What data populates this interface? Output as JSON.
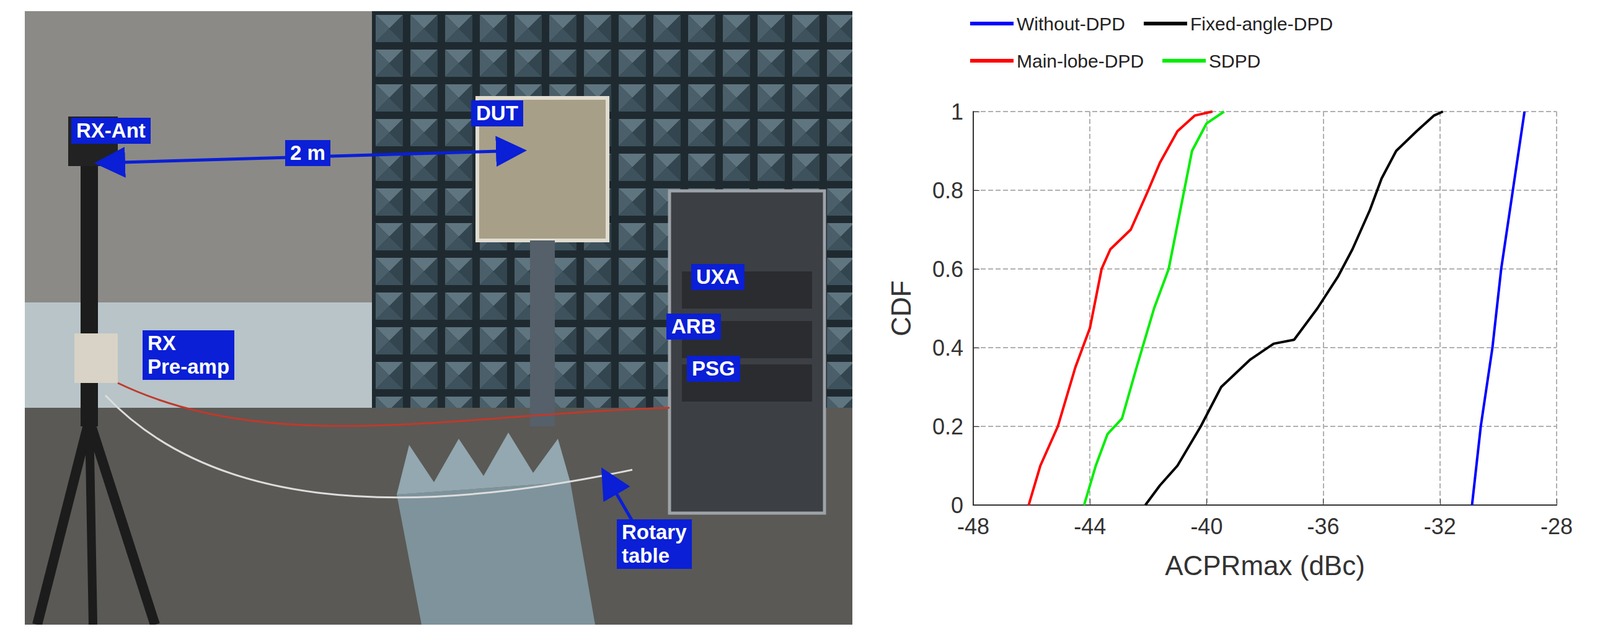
{
  "photo": {
    "labels": {
      "rx_ant": "RX-Ant",
      "distance": "2 m",
      "dut": "DUT",
      "uxa": "UXA",
      "arb": "ARB",
      "psg": "PSG",
      "preamp": "RX Pre-amp",
      "rotary": "Rotary table"
    }
  },
  "chart_data": {
    "type": "line",
    "x_label": "ACPRmax (dBc)",
    "y_label": "CDF",
    "xlim": [
      -48,
      -28
    ],
    "xticks": [
      -48,
      -44,
      -40,
      -36,
      -32,
      -28
    ],
    "ylim": [
      0,
      1
    ],
    "yticks": [
      0,
      0.2,
      0.4,
      0.6,
      0.8,
      1
    ],
    "grid": true,
    "legend": "top",
    "series": [
      {
        "name": "Without-DPD",
        "color": "#0000ff",
        "x": [
          -30.9,
          -30.6,
          -30.2,
          -29.9,
          -29.5,
          -29.1
        ],
        "values": [
          0,
          0.2,
          0.4,
          0.6,
          0.8,
          1
        ]
      },
      {
        "name": "Fixed-angle-DPD",
        "color": "#000000",
        "x": [
          -42.1,
          -41.6,
          -41,
          -40.2,
          -39.5,
          -38.5,
          -37.7,
          -37,
          -36.2,
          -35.5,
          -35,
          -34.4,
          -34,
          -33.5,
          -32.8,
          -32.2,
          -31.9
        ],
        "values": [
          0,
          0.05,
          0.1,
          0.2,
          0.3,
          0.37,
          0.41,
          0.42,
          0.5,
          0.58,
          0.65,
          0.75,
          0.83,
          0.9,
          0.95,
          0.99,
          1
        ]
      },
      {
        "name": "Main-lobe-DPD",
        "color": "#ff0000",
        "x": [
          -46.1,
          -45.7,
          -45.1,
          -44.5,
          -44,
          -43.6,
          -43.3,
          -42.6,
          -42,
          -41.6,
          -41,
          -40.4,
          -39.8
        ],
        "values": [
          0,
          0.1,
          0.2,
          0.35,
          0.45,
          0.6,
          0.65,
          0.7,
          0.8,
          0.87,
          0.95,
          0.99,
          1
        ]
      },
      {
        "name": "SDPD",
        "color": "#00ee00",
        "x": [
          -44.2,
          -43.8,
          -43.4,
          -42.9,
          -42.4,
          -41.8,
          -41.3,
          -40.9,
          -40.5,
          -40,
          -39.4
        ],
        "values": [
          0,
          0.1,
          0.18,
          0.22,
          0.35,
          0.5,
          0.6,
          0.75,
          0.9,
          0.97,
          1
        ]
      }
    ]
  }
}
